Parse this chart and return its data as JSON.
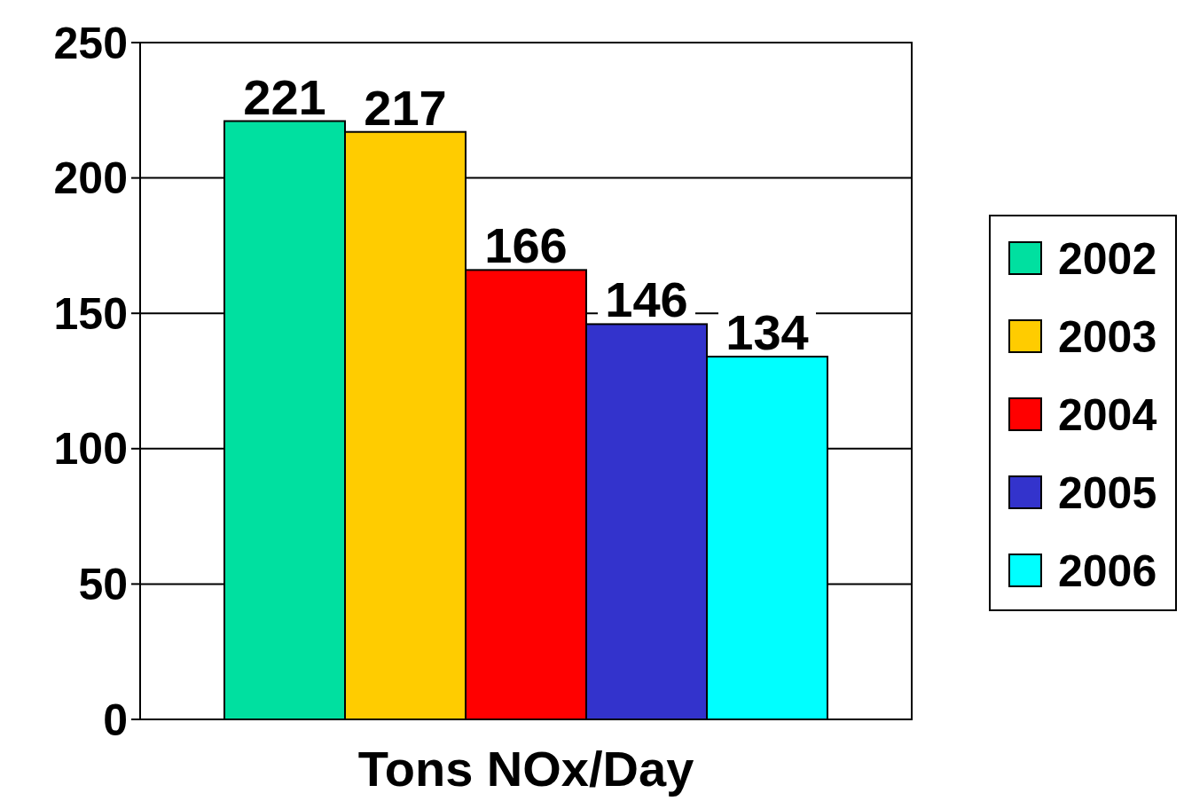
{
  "chart_data": {
    "type": "bar",
    "categories": [
      null,
      null,
      null,
      null,
      null
    ],
    "xlabel": "Tons NOx/Day",
    "series": [
      {
        "name": "2002",
        "color": "#00e0a0",
        "values": [
          221,
          null,
          null,
          null,
          null
        ]
      },
      {
        "name": "2003",
        "color": "#ffcc00",
        "values": [
          null,
          217,
          null,
          null,
          null
        ]
      },
      {
        "name": "2004",
        "color": "#ff0000",
        "values": [
          null,
          null,
          166,
          null,
          null
        ]
      },
      {
        "name": "2005",
        "color": "#3333cc",
        "values": [
          null,
          null,
          null,
          146,
          null
        ]
      },
      {
        "name": "2006",
        "color": "#00ffff",
        "values": [
          null,
          null,
          null,
          null,
          134
        ]
      }
    ],
    "ylim": [
      0,
      250
    ],
    "yticks": [
      0,
      50,
      100,
      150,
      200,
      250
    ],
    "grid": "y",
    "legend": "right",
    "data_labels": true
  }
}
